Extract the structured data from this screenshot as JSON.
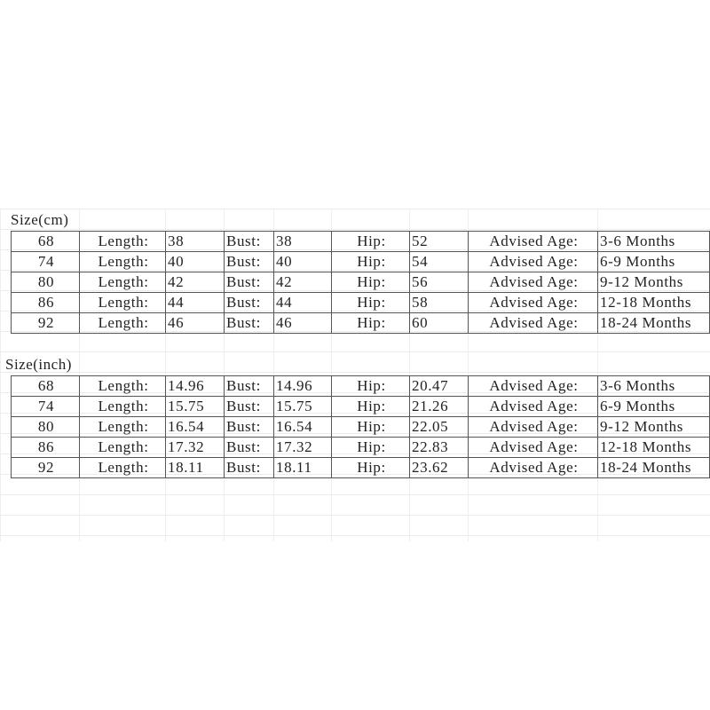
{
  "tables": [
    {
      "title": "Size(cm)",
      "rows": [
        {
          "size": "68",
          "length_label": "Length:",
          "length": "38",
          "bust_label": "Bust:",
          "bust": "38",
          "hip_label": "Hip:",
          "hip": "52",
          "age_label": "Advised Age:",
          "age": "3-6 Months"
        },
        {
          "size": "74",
          "length_label": "Length:",
          "length": "40",
          "bust_label": "Bust:",
          "bust": "40",
          "hip_label": "Hip:",
          "hip": "54",
          "age_label": "Advised Age:",
          "age": "6-9 Months"
        },
        {
          "size": "80",
          "length_label": "Length:",
          "length": "42",
          "bust_label": "Bust:",
          "bust": "42",
          "hip_label": "Hip:",
          "hip": "56",
          "age_label": "Advised Age:",
          "age": "9-12 Months"
        },
        {
          "size": "86",
          "length_label": "Length:",
          "length": "44",
          "bust_label": "Bust:",
          "bust": "44",
          "hip_label": "Hip:",
          "hip": "58",
          "age_label": "Advised Age:",
          "age": "12-18 Months"
        },
        {
          "size": "92",
          "length_label": "Length:",
          "length": "46",
          "bust_label": "Bust:",
          "bust": "46",
          "hip_label": "Hip:",
          "hip": "60",
          "age_label": "Advised Age:",
          "age": "18-24 Months"
        }
      ]
    },
    {
      "title": "Size(inch)",
      "rows": [
        {
          "size": "68",
          "length_label": "Length:",
          "length": "14.96",
          "bust_label": "Bust:",
          "bust": "14.96",
          "hip_label": "Hip:",
          "hip": "20.47",
          "age_label": "Advised Age:",
          "age": "3-6 Months"
        },
        {
          "size": "74",
          "length_label": "Length:",
          "length": "15.75",
          "bust_label": "Bust:",
          "bust": "15.75",
          "hip_label": "Hip:",
          "hip": "21.26",
          "age_label": "Advised Age:",
          "age": "6-9 Months"
        },
        {
          "size": "80",
          "length_label": "Length:",
          "length": "16.54",
          "bust_label": "Bust:",
          "bust": "16.54",
          "hip_label": "Hip:",
          "hip": "22.05",
          "age_label": "Advised Age:",
          "age": "9-12 Months"
        },
        {
          "size": "86",
          "length_label": "Length:",
          "length": "17.32",
          "bust_label": "Bust:",
          "bust": "17.32",
          "hip_label": "Hip:",
          "hip": "22.83",
          "age_label": "Advised Age:",
          "age": "12-18 Months"
        },
        {
          "size": "92",
          "length_label": "Length:",
          "length": "18.11",
          "bust_label": "Bust:",
          "bust": "18.11",
          "hip_label": "Hip:",
          "hip": "23.62",
          "age_label": "Advised Age:",
          "age": "18-24 Months"
        }
      ]
    }
  ]
}
